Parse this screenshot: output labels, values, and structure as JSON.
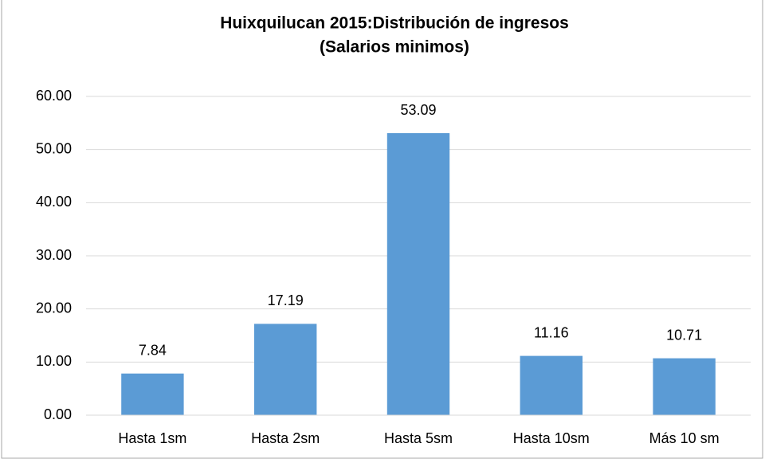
{
  "chart_data": {
    "type": "bar",
    "title": "Huixquilucan 2015:Distribución de ingresos",
    "subtitle": "(Salarios minimos)",
    "categories": [
      "Hasta 1sm",
      "Hasta 2sm",
      "Hasta 5sm",
      "Hasta 10sm",
      "Más 10 sm"
    ],
    "values": [
      7.84,
      17.19,
      53.09,
      11.16,
      10.71
    ],
    "color": "#5b9bd5",
    "ylim": [
      0,
      60
    ],
    "yticks": [
      {
        "value": 0,
        "label": "0.00"
      },
      {
        "value": 10,
        "label": "10.00"
      },
      {
        "value": 20,
        "label": "20.00"
      },
      {
        "value": 30,
        "label": "30.00"
      },
      {
        "value": 40,
        "label": "40.00"
      },
      {
        "value": 50,
        "label": "50.00"
      },
      {
        "value": 60,
        "label": "60.00"
      }
    ],
    "grid": true
  }
}
